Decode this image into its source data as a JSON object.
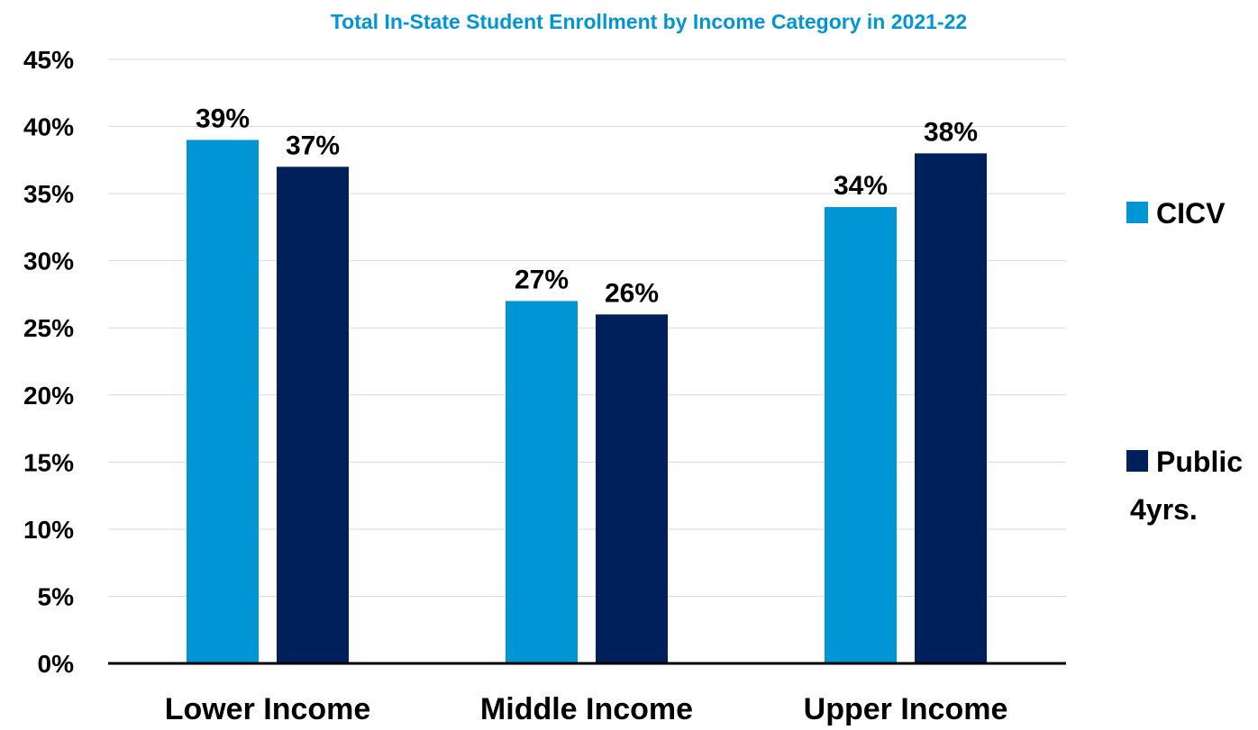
{
  "chart_data": {
    "type": "bar",
    "title": "Total In-State Student Enrollment by Income Category in 2021-22",
    "title_color": "#0096D6",
    "categories": [
      "Lower Income",
      "Middle Income",
      "Upper Income"
    ],
    "series": [
      {
        "name": "CICV",
        "name_lines": [
          "CICV"
        ],
        "color": "#0096D6",
        "values": [
          39,
          27,
          34
        ]
      },
      {
        "name": "Public 4yrs.",
        "name_lines": [
          "Public",
          "4yrs."
        ],
        "color": "#00205B",
        "values": [
          37,
          26,
          38
        ]
      }
    ],
    "data_labels": [
      [
        "39%",
        "27%",
        "34%"
      ],
      [
        "37%",
        "26%",
        "38%"
      ]
    ],
    "ylim": [
      0,
      45
    ],
    "yticks": [
      0,
      5,
      10,
      15,
      20,
      25,
      30,
      35,
      40,
      45
    ],
    "ytick_labels": [
      "0%",
      "5%",
      "10%",
      "15%",
      "20%",
      "25%",
      "30%",
      "35%",
      "40%",
      "45%"
    ],
    "xlabel": "",
    "ylabel": "",
    "grid": true,
    "legend_position": "right"
  }
}
